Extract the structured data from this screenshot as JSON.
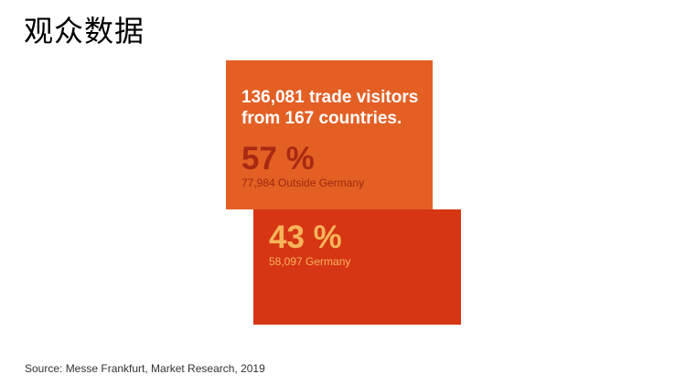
{
  "page": {
    "title": "观众数据",
    "source": "Source: Messe Frankfurt, Market Research, 2019"
  },
  "chart_data": {
    "type": "table",
    "title": "136,081 trade visitors from 167 countries.",
    "headline_lines": [
      "136,081 trade visitors",
      "from 167 countries."
    ],
    "total_visitors": 136081,
    "countries": 167,
    "segments": [
      {
        "name": "Outside Germany",
        "percent": 57,
        "percent_label": "57 %",
        "count": 77984,
        "count_label": "77,984 Outside Germany",
        "box_color": "#e35f24",
        "percent_color": "#a82a12",
        "sub_color": "#9c2a10"
      },
      {
        "name": "Germany",
        "percent": 43,
        "percent_label": "43 %",
        "count": 58097,
        "count_label": "58,097 Germany",
        "box_color": "#d63614",
        "percent_color": "#f6b45a",
        "sub_color": "#f6b25c"
      }
    ]
  }
}
